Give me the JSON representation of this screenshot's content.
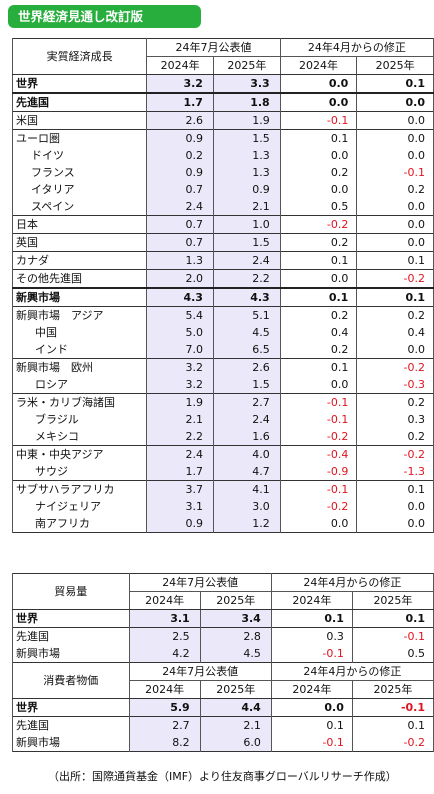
{
  "title": "世界経済見通し改訂版",
  "main": {
    "label": "実質経済成長",
    "group1": "24年7月公表値",
    "group2": "24年4月からの修正",
    "years": [
      "2024年",
      "2025年",
      "2024年",
      "2025年"
    ],
    "rows": [
      {
        "label": "世界",
        "v": [
          "3.2",
          "3.3",
          "0.0",
          "0.1"
        ]
      },
      {
        "label": "先進国",
        "v": [
          "1.7",
          "1.8",
          "0.0",
          "0.0"
        ]
      },
      {
        "label": "米国",
        "v": [
          "2.6",
          "1.9",
          "-0.1",
          "0.0"
        ]
      },
      {
        "label": "ユーロ圏",
        "v": [
          "0.9",
          "1.5",
          "0.1",
          "0.0"
        ]
      },
      {
        "label": "ドイツ",
        "v": [
          "0.2",
          "1.3",
          "0.0",
          "0.0"
        ]
      },
      {
        "label": "フランス",
        "v": [
          "0.9",
          "1.3",
          "0.2",
          "-0.1"
        ]
      },
      {
        "label": "イタリア",
        "v": [
          "0.7",
          "0.9",
          "0.0",
          "0.2"
        ]
      },
      {
        "label": "スペイン",
        "v": [
          "2.4",
          "2.1",
          "0.5",
          "0.0"
        ]
      },
      {
        "label": "日本",
        "v": [
          "0.7",
          "1.0",
          "-0.2",
          "0.0"
        ]
      },
      {
        "label": "英国",
        "v": [
          "0.7",
          "1.5",
          "0.2",
          "0.0"
        ]
      },
      {
        "label": "カナダ",
        "v": [
          "1.3",
          "2.4",
          "0.1",
          "0.1"
        ]
      },
      {
        "label": "その他先進国",
        "v": [
          "2.0",
          "2.2",
          "0.0",
          "-0.2"
        ]
      },
      {
        "label": "新興市場",
        "v": [
          "4.3",
          "4.3",
          "0.1",
          "0.1"
        ]
      },
      {
        "label": "新興市場　アジア",
        "v": [
          "5.4",
          "5.1",
          "0.2",
          "0.2"
        ]
      },
      {
        "label": "中国",
        "v": [
          "5.0",
          "4.5",
          "0.4",
          "0.4"
        ]
      },
      {
        "label": "インド",
        "v": [
          "7.0",
          "6.5",
          "0.2",
          "0.0"
        ]
      },
      {
        "label": "新興市場　欧州",
        "v": [
          "3.2",
          "2.6",
          "0.1",
          "-0.2"
        ]
      },
      {
        "label": "ロシア",
        "v": [
          "3.2",
          "1.5",
          "0.0",
          "-0.3"
        ]
      },
      {
        "label": "ラ米・カリブ海諸国",
        "v": [
          "1.9",
          "2.7",
          "-0.1",
          "0.2"
        ]
      },
      {
        "label": "ブラジル",
        "v": [
          "2.1",
          "2.4",
          "-0.1",
          "0.3"
        ]
      },
      {
        "label": "メキシコ",
        "v": [
          "2.2",
          "1.6",
          "-0.2",
          "0.2"
        ]
      },
      {
        "label": "中東・中央アジア",
        "v": [
          "2.4",
          "4.0",
          "-0.4",
          "-0.2"
        ]
      },
      {
        "label": "サウジ",
        "v": [
          "1.7",
          "4.7",
          "-0.9",
          "-1.3"
        ]
      },
      {
        "label": "サブサハラアフリカ",
        "v": [
          "3.7",
          "4.1",
          "-0.1",
          "0.1"
        ]
      },
      {
        "label": "ナイジェリア",
        "v": [
          "3.1",
          "3.0",
          "-0.2",
          "0.0"
        ]
      },
      {
        "label": "南アフリカ",
        "v": [
          "0.9",
          "1.2",
          "0.0",
          "0.0"
        ]
      }
    ]
  },
  "trade": {
    "label": "貿易量",
    "group1": "24年7月公表値",
    "group2": "24年4月からの修正",
    "years": [
      "2024年",
      "2025年",
      "2024年",
      "2025年"
    ],
    "rows": [
      {
        "label": "世界",
        "v": [
          "3.1",
          "3.4",
          "0.1",
          "0.1"
        ]
      },
      {
        "label": "先進国",
        "v": [
          "2.5",
          "2.8",
          "0.3",
          "-0.1"
        ]
      },
      {
        "label": "新興市場",
        "v": [
          "4.2",
          "4.5",
          "-0.1",
          "0.5"
        ]
      }
    ]
  },
  "cpi": {
    "label": "消費者物価",
    "group1": "24年7月公表値",
    "group2": "24年4月からの修正",
    "years": [
      "2024年",
      "2025年",
      "2024年",
      "2025年"
    ],
    "rows": [
      {
        "label": "世界",
        "v": [
          "5.9",
          "4.4",
          "0.0",
          "-0.1"
        ]
      },
      {
        "label": "先進国",
        "v": [
          "2.7",
          "2.1",
          "0.1",
          "0.1"
        ]
      },
      {
        "label": "新興市場",
        "v": [
          "8.2",
          "6.0",
          "-0.1",
          "-0.2"
        ]
      }
    ]
  },
  "source": "（出所：国際通貨基金（IMF）より住友商事グローバルリサーチ作成）"
}
